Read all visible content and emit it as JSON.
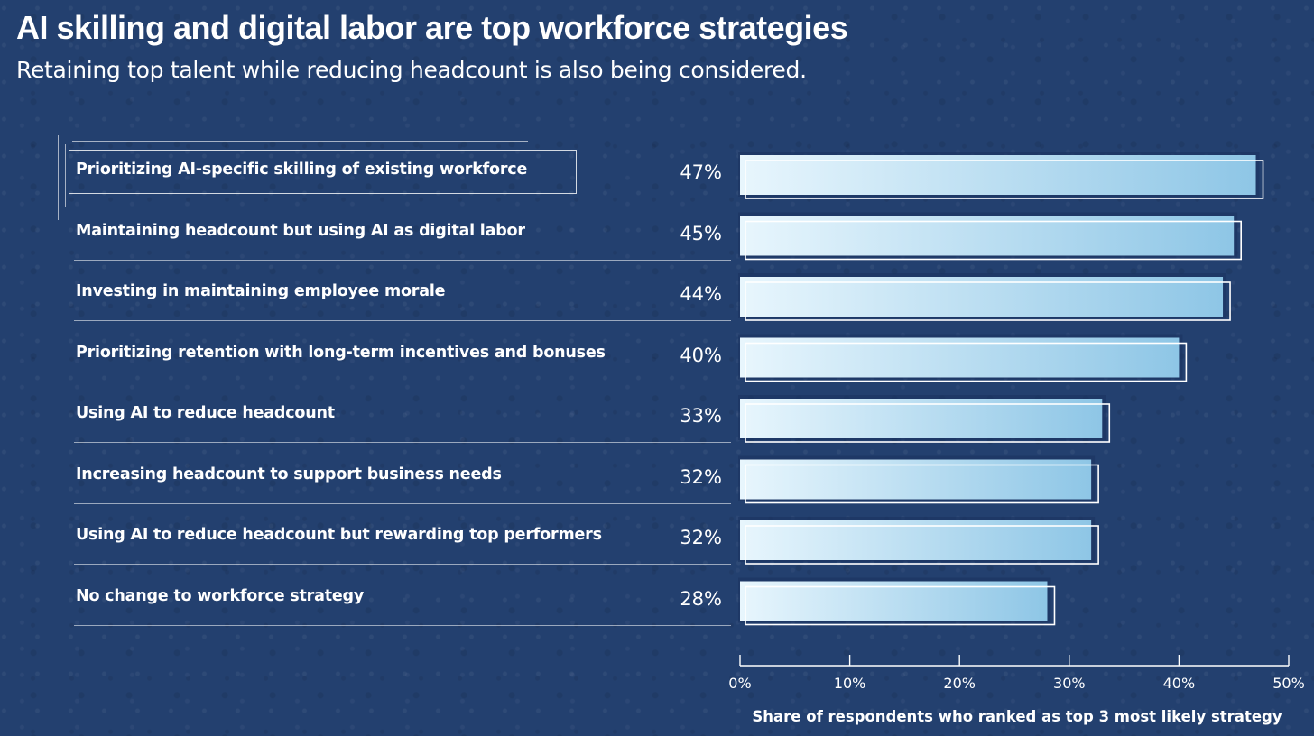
{
  "title": "AI skilling and digital labor are top workforce strategies",
  "subtitle": "Retaining top talent while reducing headcount is also being considered.",
  "chart_data": {
    "type": "bar",
    "orientation": "horizontal",
    "categories": [
      "Prioritizing AI-specific skilling of existing workforce",
      "Maintaining headcount but using AI as digital labor",
      "Investing in maintaining employee morale",
      "Prioritizing retention with long-term incentives and bonuses",
      "Using AI to reduce headcount",
      "Increasing headcount to support business needs",
      "Using AI to reduce headcount but rewarding top performers",
      "No change to workforce strategy"
    ],
    "values": [
      47,
      45,
      44,
      40,
      33,
      32,
      32,
      28
    ],
    "value_labels": [
      "47%",
      "45%",
      "44%",
      "40%",
      "33%",
      "32%",
      "32%",
      "28%"
    ],
    "xlabel": "Share of respondents who ranked as top 3 most likely strategy",
    "xlim": [
      0,
      50
    ],
    "xticks": [
      0,
      10,
      20,
      30,
      40,
      50
    ],
    "xtick_labels": [
      "0%",
      "10%",
      "20%",
      "30%",
      "40%",
      "50%"
    ],
    "grid": false,
    "highlighted_category": "Prioritizing AI-specific skilling of existing workforce",
    "colors": {
      "background": "#23406f",
      "bar_light": "#e4f4fc",
      "bar_dark": "#8ec6e6",
      "text": "#ffffff"
    }
  }
}
